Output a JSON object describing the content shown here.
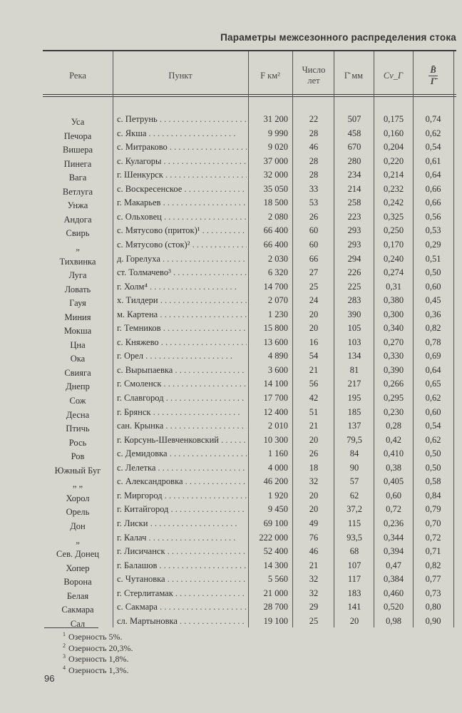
{
  "title": "Параметры межсезонного распределения стока",
  "headers": {
    "river": "Река",
    "point": "Пункт",
    "area": "F км²",
    "years": "Число лет",
    "gamma": "Г̄ мм",
    "cv": "Cv_Г",
    "ratio_num": "B̄",
    "ratio_den": "Г̄"
  },
  "rows": [
    {
      "river": "Уса",
      "point": "с. Петрунь",
      "area": "31 200",
      "years": "22",
      "gamma": "507",
      "cv": "0,175",
      "ratio": "0,74"
    },
    {
      "river": "Печора",
      "point": "с. Якша",
      "area": "9 990",
      "years": "28",
      "gamma": "458",
      "cv": "0,160",
      "ratio": "0,62"
    },
    {
      "river": "Вишера",
      "point": "с. Митраково",
      "area": "9 020",
      "years": "46",
      "gamma": "670",
      "cv": "0,204",
      "ratio": "0,54"
    },
    {
      "river": "Пинега",
      "point": "с. Кулагоры",
      "area": "37 000",
      "years": "28",
      "gamma": "280",
      "cv": "0,220",
      "ratio": "0,61"
    },
    {
      "river": "Вага",
      "point": "г. Шенкурск",
      "area": "32 000",
      "years": "28",
      "gamma": "234",
      "cv": "0,214",
      "ratio": "0,64"
    },
    {
      "river": "Ветлуга",
      "point": "с. Воскресенское",
      "area": "35 050",
      "years": "33",
      "gamma": "214",
      "cv": "0,232",
      "ratio": "0,66"
    },
    {
      "river": "Унжа",
      "point": "г. Макарьев",
      "area": "18 500",
      "years": "53",
      "gamma": "258",
      "cv": "0,242",
      "ratio": "0,66"
    },
    {
      "river": "Андога",
      "point": "с. Ольховец",
      "area": "2 080",
      "years": "26",
      "gamma": "223",
      "cv": "0,325",
      "ratio": "0,56"
    },
    {
      "river": "Свирь",
      "point": "с. Мятусово (приток)¹",
      "area": "66 400",
      "years": "60",
      "gamma": "293",
      "cv": "0,250",
      "ratio": "0,53"
    },
    {
      "river": "„",
      "point": "с. Мятусово (сток)²",
      "area": "66 400",
      "years": "60",
      "gamma": "293",
      "cv": "0,170",
      "ratio": "0,29"
    },
    {
      "river": "Тихвинка",
      "point": "д. Горелуха",
      "area": "2 030",
      "years": "66",
      "gamma": "294",
      "cv": "0,240",
      "ratio": "0,51"
    },
    {
      "river": "Луга",
      "point": "ст. Толмачево³",
      "area": "6 320",
      "years": "27",
      "gamma": "226",
      "cv": "0,274",
      "ratio": "0,50"
    },
    {
      "river": "Ловать",
      "point": "г. Холм⁴",
      "area": "14 700",
      "years": "25",
      "gamma": "225",
      "cv": "0,31",
      "ratio": "0,60"
    },
    {
      "river": "Гауя",
      "point": "х. Тилдери",
      "area": "2 070",
      "years": "24",
      "gamma": "283",
      "cv": "0,380",
      "ratio": "0,45"
    },
    {
      "river": "Миния",
      "point": "м. Картена",
      "area": "1 230",
      "years": "20",
      "gamma": "390",
      "cv": "0,300",
      "ratio": "0,36"
    },
    {
      "river": "Мокша",
      "point": "г. Темников",
      "area": "15 800",
      "years": "20",
      "gamma": "105",
      "cv": "0,340",
      "ratio": "0,82"
    },
    {
      "river": "Цна",
      "point": "с. Княжево",
      "area": "13 600",
      "years": "16",
      "gamma": "103",
      "cv": "0,270",
      "ratio": "0,78"
    },
    {
      "river": "Ока",
      "point": "г. Орел",
      "area": "4 890",
      "years": "54",
      "gamma": "134",
      "cv": "0,330",
      "ratio": "0,69"
    },
    {
      "river": "Свияга",
      "point": "с. Вырыпаевка",
      "area": "3 600",
      "years": "21",
      "gamma": "81",
      "cv": "0,390",
      "ratio": "0,64"
    },
    {
      "river": "Днепр",
      "point": "г. Смоленск",
      "area": "14 100",
      "years": "56",
      "gamma": "217",
      "cv": "0,266",
      "ratio": "0,65"
    },
    {
      "river": "Сож",
      "point": "г. Славгород",
      "area": "17 700",
      "years": "42",
      "gamma": "195",
      "cv": "0,295",
      "ratio": "0,62"
    },
    {
      "river": "Десна",
      "point": "г. Брянск",
      "area": "12 400",
      "years": "51",
      "gamma": "185",
      "cv": "0,230",
      "ratio": "0,60"
    },
    {
      "river": "Птичь",
      "point": "сан. Крынка",
      "area": "2 010",
      "years": "21",
      "gamma": "137",
      "cv": "0,28",
      "ratio": "0,54"
    },
    {
      "river": "Рось",
      "point": "г. Корсунь-Шевченковский",
      "area": "10 300",
      "years": "20",
      "gamma": "79,5",
      "cv": "0,42",
      "ratio": "0,62"
    },
    {
      "river": "Ров",
      "point": "с. Демидовка",
      "area": "1 160",
      "years": "26",
      "gamma": "84",
      "cv": "0,410",
      "ratio": "0,50"
    },
    {
      "river": "Южный Буг",
      "point": "с. Лелетка",
      "area": "4 000",
      "years": "18",
      "gamma": "90",
      "cv": "0,38",
      "ratio": "0,50"
    },
    {
      "river": "„   „",
      "point": "с. Александровка",
      "area": "46 200",
      "years": "32",
      "gamma": "57",
      "cv": "0,405",
      "ratio": "0,58"
    },
    {
      "river": "Хорол",
      "point": "г. Миргород",
      "area": "1 920",
      "years": "20",
      "gamma": "62",
      "cv": "0,60",
      "ratio": "0,84"
    },
    {
      "river": "Орель",
      "point": "г. Китайгород",
      "area": "9 450",
      "years": "20",
      "gamma": "37,2",
      "cv": "0,72",
      "ratio": "0,79"
    },
    {
      "river": "Дон",
      "point": "г. Лиски",
      "area": "69 100",
      "years": "49",
      "gamma": "115",
      "cv": "0,236",
      "ratio": "0,70"
    },
    {
      "river": "„",
      "point": "г. Калач",
      "area": "222 000",
      "years": "76",
      "gamma": "93,5",
      "cv": "0,344",
      "ratio": "0,72"
    },
    {
      "river": "Сев. Донец",
      "point": "г. Лисичанск",
      "area": "52 400",
      "years": "46",
      "gamma": "68",
      "cv": "0,394",
      "ratio": "0,71"
    },
    {
      "river": "Хопер",
      "point": "г. Балашов",
      "area": "14 300",
      "years": "21",
      "gamma": "107",
      "cv": "0,47",
      "ratio": "0,82"
    },
    {
      "river": "Ворона",
      "point": "с. Чутановка",
      "area": "5 560",
      "years": "32",
      "gamma": "117",
      "cv": "0,384",
      "ratio": "0,77"
    },
    {
      "river": "Белая",
      "point": "г. Стерлитамак",
      "area": "21 000",
      "years": "32",
      "gamma": "183",
      "cv": "0,460",
      "ratio": "0,73"
    },
    {
      "river": "Сакмара",
      "point": "с. Сакмара",
      "area": "28 700",
      "years": "29",
      "gamma": "141",
      "cv": "0,520",
      "ratio": "0,80"
    },
    {
      "river": "Сал",
      "point": "сл. Мартыновка",
      "area": "19 100",
      "years": "25",
      "gamma": "20",
      "cv": "0,98",
      "ratio": "0,90"
    }
  ],
  "footnotes": [
    {
      "mark": "1",
      "text": "Озерность 5%."
    },
    {
      "mark": "2",
      "text": "Озерность 20,3%."
    },
    {
      "mark": "3",
      "text": "Озерность 1,8%."
    },
    {
      "mark": "4",
      "text": "Озерность 1,3%."
    }
  ],
  "page_number": "96"
}
